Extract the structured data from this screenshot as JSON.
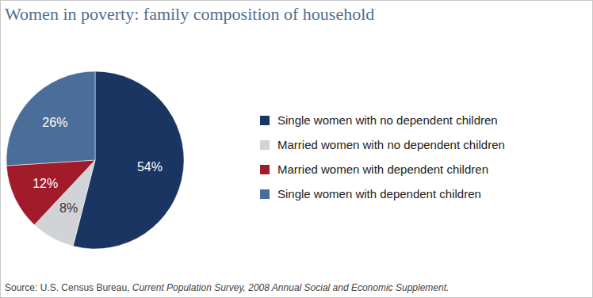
{
  "chart_data": {
    "type": "pie",
    "title": "Women in poverty: family composition of household",
    "categories": [
      "Single women with no dependent children",
      "Married women with no dependent children",
      "Married women with dependent children",
      "Single women with dependent children"
    ],
    "values": [
      54,
      8,
      12,
      26
    ],
    "value_labels": [
      "54%",
      "8%",
      "12%",
      "26%"
    ],
    "colors": [
      "#1b3562",
      "#d2d3d9",
      "#a21b2b",
      "#4a6e99"
    ],
    "data_labels": true,
    "legend": "right",
    "source": [
      "Source: U.S. Census Bureau, ",
      "Current Population Survey, 2008 Annual Social and Economic Supplement."
    ]
  }
}
